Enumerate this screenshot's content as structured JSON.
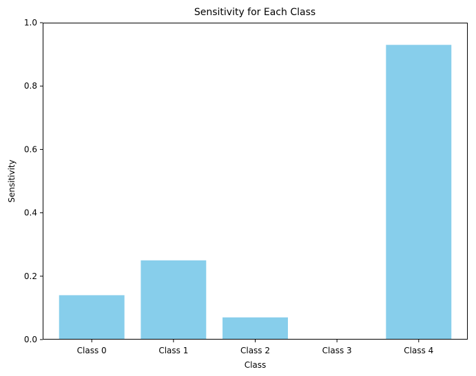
{
  "chart_data": {
    "type": "bar",
    "title": "Sensitivity for Each Class",
    "xlabel": "Class",
    "ylabel": "Sensitivity",
    "categories": [
      "Class 0",
      "Class 1",
      "Class 2",
      "Class 3",
      "Class 4"
    ],
    "values": [
      0.14,
      0.25,
      0.07,
      0.0,
      0.93
    ],
    "ylim": [
      0,
      1.0
    ],
    "yticks": [
      0.0,
      0.2,
      0.4,
      0.6,
      0.8,
      1.0
    ],
    "ytick_labels": [
      "0.0",
      "0.2",
      "0.4",
      "0.6",
      "0.8",
      "1.0"
    ],
    "bar_color": "#87ceeb",
    "grid": false,
    "legend": false
  }
}
